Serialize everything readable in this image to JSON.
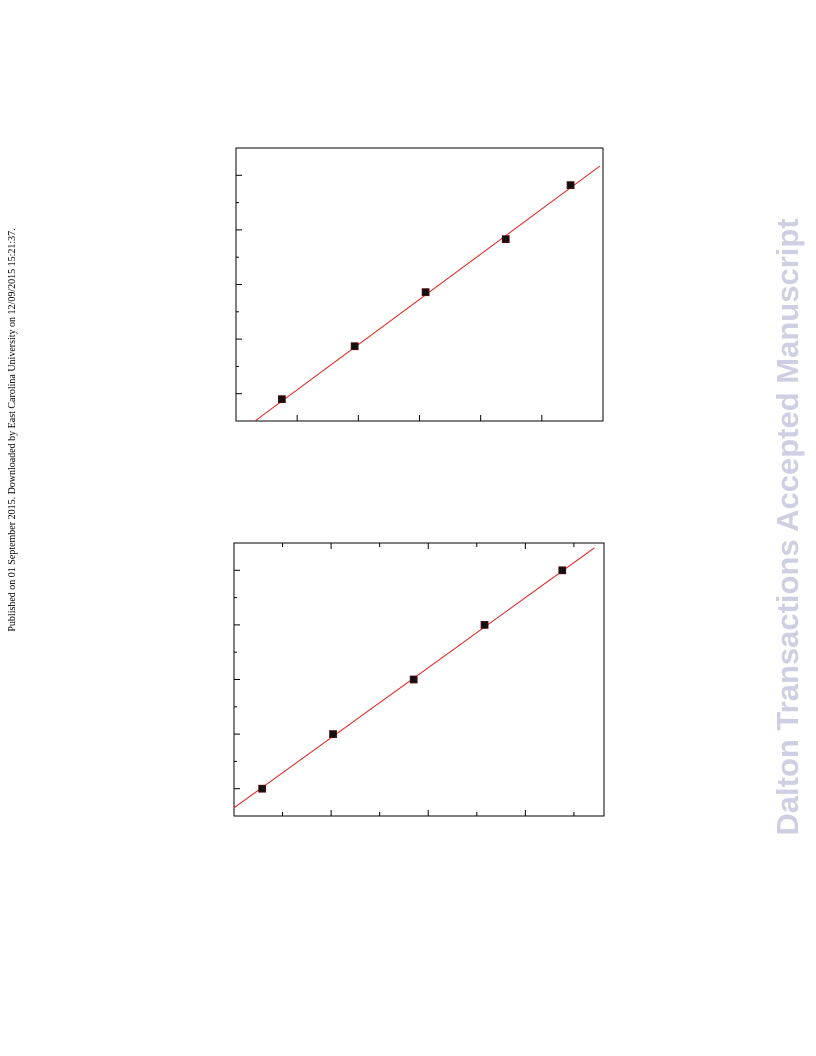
{
  "side_note": "Published on 01 September 2015. Downloaded by East Carolina University on 12/09/2015 15:21:37.",
  "watermark": "Dalton Transactions Accepted Manuscript",
  "chart_data": [
    {
      "type": "scatter",
      "x": [
        0.75,
        1.94,
        3.1,
        4.41,
        5.47
      ],
      "values": [
        0.9,
        1.87,
        2.86,
        3.83,
        4.82
      ],
      "color": "#111111",
      "fit": {
        "x": [
          0.31,
          5.95
        ],
        "values": [
          0.5,
          5.17
        ],
        "color": "#e0201c"
      },
      "xlim": [
        0,
        6
      ],
      "ylim": [
        0.5,
        5.5
      ],
      "xticks": [
        1,
        2,
        3,
        4,
        5
      ],
      "yticks": [
        1,
        1.5,
        2,
        2.5,
        3,
        3.5,
        4,
        4.5,
        5
      ],
      "mirror_ticks": false
    },
    {
      "type": "scatter",
      "x": [
        0.29,
        1.02,
        1.85,
        2.58,
        3.38
      ],
      "values": [
        1,
        2,
        3,
        4,
        5
      ],
      "color": "#111111",
      "fit": {
        "x": [
          0,
          3.71
        ],
        "values": [
          0.65,
          5.41
        ],
        "color": "#e0201c"
      },
      "xlim": [
        0,
        3.81
      ],
      "ylim": [
        0.5,
        5.5
      ],
      "xticks": [
        0.5,
        1,
        1.5,
        2,
        2.5,
        3,
        3.5
      ],
      "yticks": [
        1,
        1.5,
        2,
        2.5,
        3,
        3.5,
        4,
        4.5,
        5
      ],
      "mirror_ticks": true
    }
  ]
}
